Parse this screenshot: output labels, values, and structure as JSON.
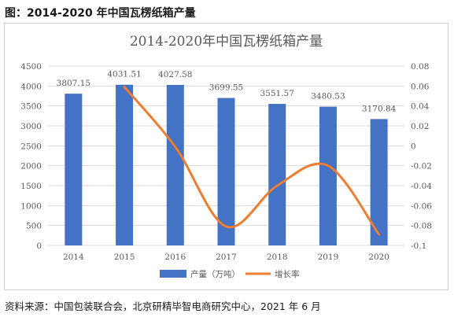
{
  "caption": "图：2014-2020 年中国瓦楞纸箱产量",
  "source": "资料来源：中国包装联合会，北京研精毕智电商研究中心，2021 年 6 月",
  "colors": {
    "bar": "#4472C4",
    "line": "#ED7D31",
    "grid": "#d9d9d9",
    "text": "#595959"
  },
  "chart_data": {
    "type": "bar",
    "title": "2014-2020年中国瓦楞纸箱产量",
    "categories": [
      "2014",
      "2015",
      "2016",
      "2017",
      "2018",
      "2019",
      "2020"
    ],
    "series": [
      {
        "name": "产量（万吨）",
        "type": "bar",
        "axis": "left",
        "values": [
          3807.15,
          4031.51,
          4027.58,
          3699.55,
          3551.57,
          3480.53,
          3170.84
        ],
        "labels": [
          "3807.15",
          "4031.51",
          "4027.58",
          "3699.55",
          "3551.57",
          "3480.53",
          "3170.84"
        ]
      },
      {
        "name": "增长率",
        "type": "line",
        "axis": "right",
        "x": [
          "2015",
          "2016",
          "2017",
          "2018",
          "2019",
          "2020"
        ],
        "values": [
          0.059,
          -0.001,
          -0.081,
          -0.04,
          -0.02,
          -0.089
        ]
      }
    ],
    "y_left": {
      "range": [
        0,
        4500
      ],
      "ticks": [
        "0",
        "500",
        "1000",
        "1500",
        "2000",
        "2500",
        "3000",
        "3500",
        "4000",
        "4500"
      ]
    },
    "y_right": {
      "range": [
        -0.1,
        0.08
      ],
      "ticks": [
        "-0.1",
        "-0.08",
        "-0.06",
        "-0.04",
        "-0.02",
        "0",
        "0.02",
        "0.04",
        "0.06",
        "0.08"
      ]
    },
    "grid": true,
    "legend_position": "bottom"
  }
}
